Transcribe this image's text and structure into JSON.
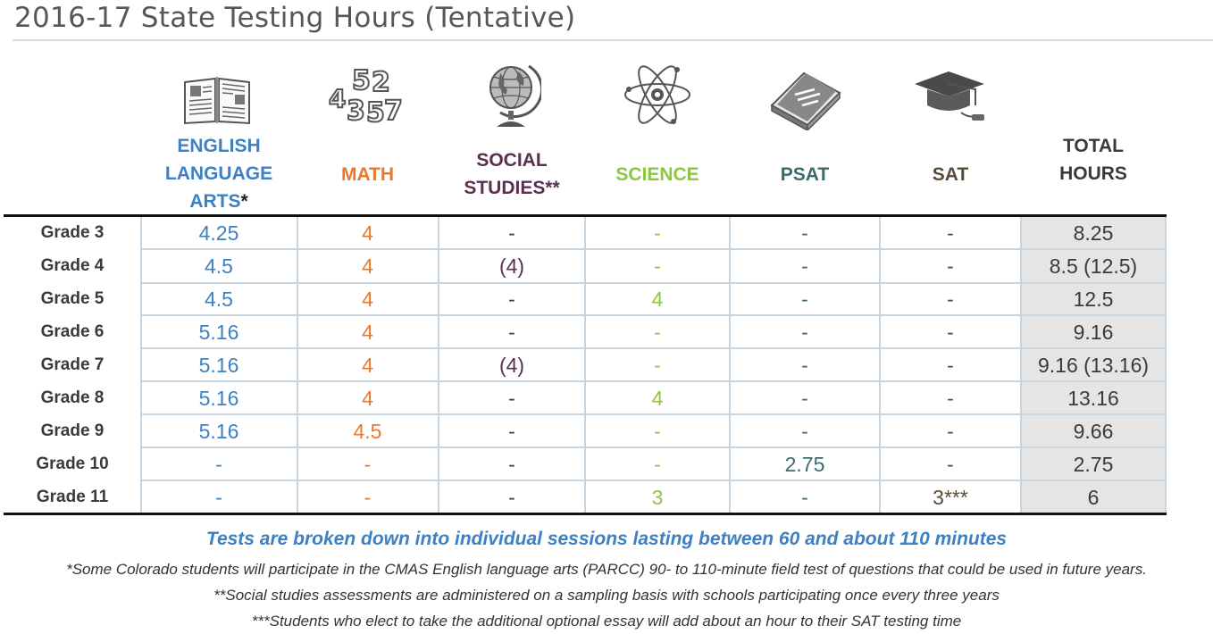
{
  "title": "2016-17 State Testing Hours (Tentative)",
  "headers": {
    "ela": [
      "ENGLISH",
      "LANGUAGE",
      "ARTS"
    ],
    "ela_mark": "*",
    "math": "MATH",
    "ss": [
      "SOCIAL",
      "STUDIES**"
    ],
    "science": "SCIENCE",
    "psat": "PSAT",
    "sat": "SAT",
    "total": [
      "TOTAL",
      "HOURS"
    ]
  },
  "rows": [
    {
      "grade": "Grade 3",
      "ela": "4.25",
      "math": "4",
      "ss": "-",
      "science": "-",
      "psat": "-",
      "sat": "-",
      "total": "8.25"
    },
    {
      "grade": "Grade 4",
      "ela": "4.5",
      "math": "4",
      "ss": "(4)",
      "science": "-",
      "psat": "-",
      "sat": "-",
      "total": "8.5 (12.5)"
    },
    {
      "grade": "Grade 5",
      "ela": "4.5",
      "math": "4",
      "ss": "-",
      "science": "4",
      "psat": "-",
      "sat": "-",
      "total": "12.5"
    },
    {
      "grade": "Grade 6",
      "ela": "5.16",
      "math": "4",
      "ss": "-",
      "science": "-",
      "psat": "-",
      "sat": "-",
      "total": "9.16"
    },
    {
      "grade": "Grade 7",
      "ela": "5.16",
      "math": "4",
      "ss": "(4)",
      "science": "-",
      "psat": "-",
      "sat": "-",
      "total": "9.16 (13.16)"
    },
    {
      "grade": "Grade 8",
      "ela": "5.16",
      "math": "4",
      "ss": "-",
      "science": "4",
      "psat": "-",
      "sat": "-",
      "total": "13.16"
    },
    {
      "grade": "Grade 9",
      "ela": "5.16",
      "math": "4.5",
      "ss": "-",
      "science": "-",
      "psat": "-",
      "sat": "-",
      "total": "9.66"
    },
    {
      "grade": "Grade 10",
      "ela": "-",
      "math": "-",
      "ss": "-",
      "science": "-",
      "psat": "2.75",
      "sat": "-",
      "total": "2.75"
    },
    {
      "grade": "Grade 11",
      "ela": "-",
      "math": "-",
      "ss": "-",
      "science": "3",
      "psat": "-",
      "sat": "3***",
      "total": "6"
    }
  ],
  "notes": {
    "main": "Tests are broken down into individual sessions lasting between 60 and about 110 minutes",
    "n1": "*Some Colorado students will participate in the CMAS English language arts (PARCC) 90- to 110-minute field test of questions that could be used in future years.",
    "n2": "**Social studies assessments are administered on a sampling basis with schools participating once every three years",
    "n3": "***Students who elect to take the additional optional essay will add about an hour to their SAT testing time"
  },
  "icons": [
    "open-book-icon",
    "numbers-icon",
    "globe-icon",
    "atom-icon",
    "closed-book-icon",
    "graduation-cap-icon"
  ],
  "colors": {
    "ela": "#3d80c3",
    "math": "#e8782b",
    "social_studies": "#5a3050",
    "science": "#8dc63f",
    "psat": "#3d6b6b",
    "sat": "#5a4a38",
    "total_bg": "#e5e5e5"
  }
}
